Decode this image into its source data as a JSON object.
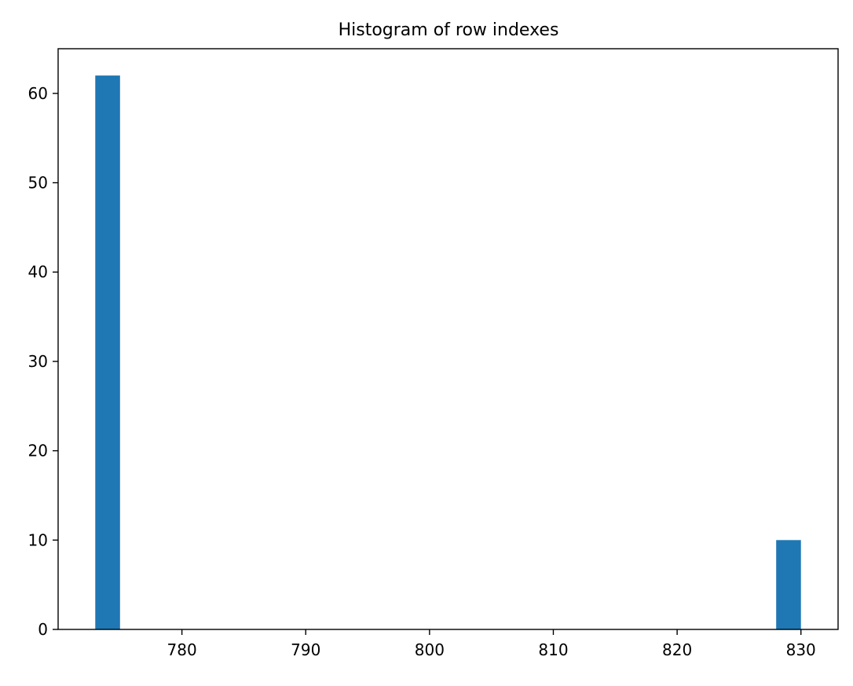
{
  "chart_data": {
    "type": "bar",
    "title": "Histogram of row indexes",
    "xlabel": "",
    "ylabel": "",
    "xlim": [
      770.0,
      833.0
    ],
    "ylim": [
      0,
      65
    ],
    "x_ticks": [
      780,
      790,
      800,
      810,
      820,
      830
    ],
    "y_ticks": [
      0,
      10,
      20,
      30,
      40,
      50,
      60
    ],
    "bins": [
      {
        "x0": 773.0,
        "x1": 775.0,
        "count": 62
      },
      {
        "x0": 828.0,
        "x1": 830.0,
        "count": 10
      }
    ],
    "grid": false,
    "legend": "none",
    "bar_color": "#1f77b4"
  }
}
